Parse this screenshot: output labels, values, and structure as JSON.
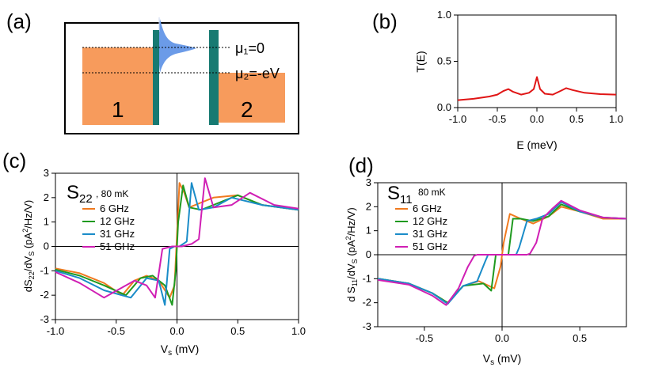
{
  "panel_labels": {
    "a": "(a)",
    "b": "(b)",
    "c": "(c)",
    "d": "(d)"
  },
  "panel_a": {
    "mu1": "μ₁=0",
    "mu2": "μ₂=-eV",
    "lead1": "1",
    "lead2": "2",
    "colors": {
      "lead": "#f79b5c",
      "barrier": "#177a72",
      "dos": "#6b9be8"
    }
  },
  "colors": {
    "s6": "#f07a1f",
    "s12": "#1f9a1f",
    "s31": "#1a8cc8",
    "s51": "#d01fb4",
    "transmission": "#e01515"
  },
  "chart_data": [
    {
      "id": "b",
      "type": "line",
      "title": "",
      "xlabel": "E (meV)",
      "ylabel": "T(E)",
      "xlim": [
        -1.0,
        1.0
      ],
      "ylim": [
        0.0,
        1.0
      ],
      "xticks": [
        "-1.0",
        "-0.5",
        "0.0",
        "0.5",
        "1.0"
      ],
      "yticks": [
        "0.0",
        "0.5",
        "1.0"
      ],
      "series": [
        {
          "name": "T(E)",
          "x": [
            -1.0,
            -0.8,
            -0.6,
            -0.5,
            -0.42,
            -0.36,
            -0.3,
            -0.2,
            -0.1,
            -0.04,
            0.0,
            0.04,
            0.1,
            0.2,
            0.3,
            0.37,
            0.45,
            0.6,
            0.8,
            1.0
          ],
          "y": [
            0.08,
            0.095,
            0.12,
            0.14,
            0.18,
            0.2,
            0.17,
            0.14,
            0.16,
            0.2,
            0.33,
            0.2,
            0.15,
            0.14,
            0.18,
            0.21,
            0.19,
            0.16,
            0.145,
            0.14
          ]
        }
      ]
    },
    {
      "id": "c",
      "type": "line",
      "title": "S22",
      "title_main": "S",
      "title_sub": "22",
      "temperature": ", 80 mK",
      "xlabel": "Vs (mV)",
      "xlabel_main": "V",
      "xlabel_sub": "s",
      "xlabel_unit": " (mV)",
      "ylabel": "dS22/dVS (pA2/Hz/V)",
      "xlim": [
        -1.0,
        1.0
      ],
      "ylim": [
        -3,
        3
      ],
      "xticks": [
        "-1.0",
        "-0.5",
        "0.0",
        "0.5",
        "1.0"
      ],
      "yticks": [
        "-3",
        "-2",
        "-1",
        "0",
        "1",
        "2",
        "3"
      ],
      "series": [
        {
          "name": "6 GHz",
          "x": [
            -1.0,
            -0.8,
            -0.6,
            -0.45,
            -0.35,
            -0.25,
            -0.15,
            -0.06,
            -0.02,
            0.02,
            0.06,
            0.1,
            0.2,
            0.3,
            0.5,
            0.7,
            1.0
          ],
          "y": [
            -0.9,
            -1.1,
            -1.5,
            -2.0,
            -1.4,
            -1.2,
            -1.4,
            -2.1,
            -1.6,
            2.6,
            2.2,
            1.6,
            1.8,
            2.0,
            2.1,
            1.7,
            1.5
          ]
        },
        {
          "name": "12 GHz",
          "x": [
            -1.0,
            -0.8,
            -0.6,
            -0.42,
            -0.3,
            -0.2,
            -0.1,
            -0.04,
            -0.01,
            0.01,
            0.05,
            0.1,
            0.2,
            0.35,
            0.5,
            0.7,
            1.0
          ],
          "y": [
            -0.95,
            -1.2,
            -1.6,
            -2.0,
            -1.3,
            -1.2,
            -1.6,
            -2.4,
            -1.0,
            1.0,
            2.5,
            1.6,
            1.5,
            1.8,
            2.1,
            1.7,
            1.5
          ]
        },
        {
          "name": "31 GHz",
          "x": [
            -1.0,
            -0.8,
            -0.6,
            -0.38,
            -0.25,
            -0.15,
            -0.1,
            -0.06,
            -0.02,
            0.02,
            0.08,
            0.12,
            0.18,
            0.3,
            0.45,
            0.7,
            1.0
          ],
          "y": [
            -1.0,
            -1.3,
            -1.8,
            -2.1,
            -1.3,
            -1.4,
            -2.4,
            -0.1,
            0.0,
            0.0,
            0.2,
            2.6,
            1.5,
            1.6,
            2.0,
            1.7,
            1.5
          ]
        },
        {
          "name": "51 GHz",
          "x": [
            -1.0,
            -0.8,
            -0.6,
            -0.35,
            -0.25,
            -0.18,
            -0.12,
            -0.04,
            0.04,
            0.12,
            0.18,
            0.23,
            0.3,
            0.45,
            0.6,
            0.8,
            1.0
          ],
          "y": [
            -1.05,
            -1.5,
            -2.1,
            -1.4,
            -1.6,
            -2.1,
            -0.1,
            0.0,
            0.0,
            0.1,
            0.3,
            2.8,
            1.6,
            1.7,
            2.2,
            1.7,
            1.55
          ]
        }
      ]
    },
    {
      "id": "d",
      "type": "line",
      "title": "S11",
      "title_main": "S",
      "title_sub": "11",
      "temperature": "80 mK",
      "xlabel": "Vs (mV)",
      "xlabel_main": "V",
      "xlabel_sub": "s",
      "xlabel_unit": " (mV)",
      "ylabel": "d S11/dVS (pA2/Hz/V)",
      "xlim": [
        -0.8,
        0.8
      ],
      "ylim": [
        -3,
        3
      ],
      "xticks": [
        "-0.5",
        "0.0",
        "0.5"
      ],
      "yticks": [
        "-3",
        "-2",
        "-1",
        "0",
        "1",
        "2",
        "3"
      ],
      "series": [
        {
          "name": "6 GHz",
          "x": [
            -0.8,
            -0.6,
            -0.45,
            -0.35,
            -0.25,
            -0.15,
            -0.05,
            -0.01,
            0.01,
            0.05,
            0.12,
            0.2,
            0.3,
            0.38,
            0.5,
            0.65,
            0.8
          ],
          "y": [
            -1.0,
            -1.2,
            -1.6,
            -2.0,
            -1.3,
            -1.1,
            -1.4,
            -0.5,
            0.5,
            1.7,
            1.5,
            1.3,
            1.6,
            2.0,
            1.8,
            1.5,
            1.5
          ]
        },
        {
          "name": "12 GHz",
          "x": [
            -0.8,
            -0.6,
            -0.45,
            -0.35,
            -0.25,
            -0.12,
            -0.07,
            -0.04,
            0.04,
            0.07,
            0.12,
            0.2,
            0.3,
            0.38,
            0.5,
            0.65,
            0.8
          ],
          "y": [
            -1.0,
            -1.2,
            -1.6,
            -2.0,
            -1.3,
            -1.2,
            -1.5,
            0.0,
            0.0,
            1.5,
            1.5,
            1.4,
            1.6,
            2.1,
            1.8,
            1.55,
            1.5
          ]
        },
        {
          "name": "31 GHz",
          "x": [
            -0.8,
            -0.6,
            -0.45,
            -0.35,
            -0.25,
            -0.16,
            -0.11,
            -0.09,
            0.09,
            0.11,
            0.16,
            0.22,
            0.3,
            0.38,
            0.5,
            0.65,
            0.8
          ],
          "y": [
            -1.0,
            -1.2,
            -1.6,
            -2.05,
            -1.3,
            -1.1,
            -0.3,
            0.0,
            0.0,
            0.3,
            1.4,
            1.5,
            1.7,
            2.2,
            1.8,
            1.55,
            1.5
          ]
        },
        {
          "name": "51 GHz",
          "x": [
            -0.8,
            -0.6,
            -0.45,
            -0.36,
            -0.28,
            -0.22,
            -0.18,
            -0.16,
            0.16,
            0.18,
            0.22,
            0.26,
            0.32,
            0.38,
            0.5,
            0.65,
            0.8
          ],
          "y": [
            -1.05,
            -1.25,
            -1.7,
            -2.1,
            -1.4,
            -0.5,
            -0.05,
            0.0,
            0.0,
            0.05,
            0.5,
            1.5,
            1.9,
            2.25,
            1.85,
            1.55,
            1.5
          ]
        }
      ]
    }
  ]
}
